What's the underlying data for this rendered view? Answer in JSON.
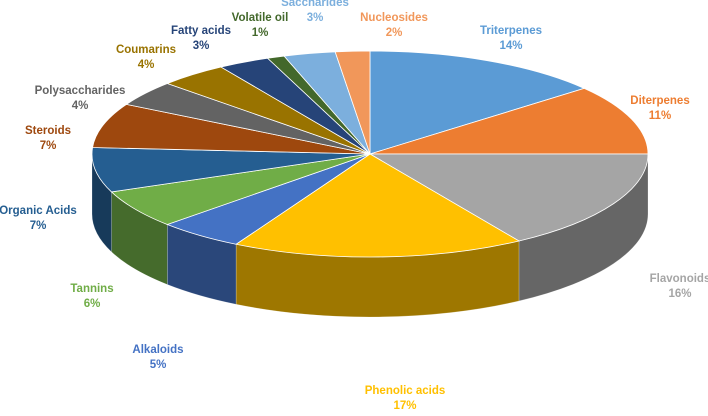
{
  "chart_data": {
    "type": "pie",
    "style": "3d",
    "title": "",
    "legend": "none",
    "slices": [
      {
        "label": "Triterpenes",
        "percent": 14,
        "value_label": "14%",
        "color": "#5B9BD5"
      },
      {
        "label": "Diterpenes",
        "percent": 11,
        "value_label": "11%",
        "color": "#ED7D31"
      },
      {
        "label": "Flavonoids",
        "percent": 16,
        "value_label": "16%",
        "color": "#A5A5A5"
      },
      {
        "label": "Phenolic acids",
        "percent": 17,
        "value_label": "17%",
        "color": "#FFC000"
      },
      {
        "label": "Alkaloids",
        "percent": 5,
        "value_label": "5%",
        "color": "#4472C4"
      },
      {
        "label": "Tannins",
        "percent": 6,
        "value_label": "6%",
        "color": "#70AD47"
      },
      {
        "label": "Organic Acids",
        "percent": 7,
        "value_label": "7%",
        "color": "#255E91"
      },
      {
        "label": "Steroids",
        "percent": 7,
        "value_label": "7%",
        "color": "#9E480E"
      },
      {
        "label": "Polysaccharides",
        "percent": 4,
        "value_label": "4%",
        "color": "#636363"
      },
      {
        "label": "Coumarins",
        "percent": 4,
        "value_label": "4%",
        "color": "#997300"
      },
      {
        "label": "Fatty acids",
        "percent": 3,
        "value_label": "3%",
        "color": "#264478"
      },
      {
        "label": "Volatile oil",
        "percent": 1,
        "value_label": "1%",
        "color": "#43682B"
      },
      {
        "label": "Saccharides",
        "percent": 3,
        "value_label": "3%",
        "color": "#7CAFDD"
      },
      {
        "label": "Nucleosides",
        "percent": 2,
        "value_label": "2%",
        "color": "#F1975A"
      }
    ]
  }
}
